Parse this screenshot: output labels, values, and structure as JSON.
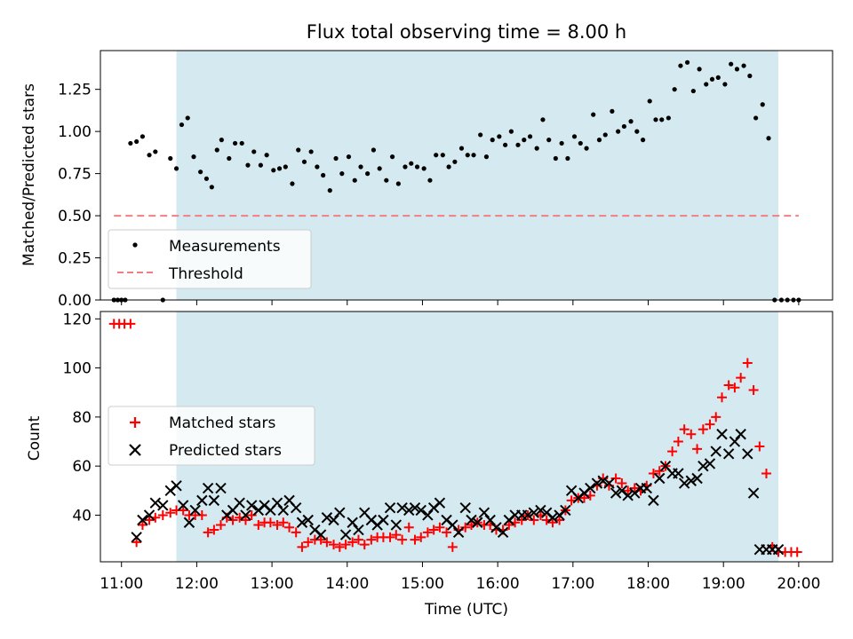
{
  "chart_data": [
    {
      "type": "scatter",
      "title": "Flux total observing time = 8.00 h",
      "xlabel": "",
      "ylabel": "Matched/Predicted stars",
      "xlim": [
        10.72,
        20.45
      ],
      "ylim": [
        0,
        1.48
      ],
      "yticks": [
        "0.00",
        "0.25",
        "0.50",
        "0.75",
        "1.00",
        "1.25"
      ],
      "shaded_region": [
        11.73,
        19.73
      ],
      "shaded_color": "#d4eaf0",
      "legend_placement": "lower-left",
      "series": [
        {
          "name": "Measurements",
          "marker": "dot",
          "color": "#000000",
          "x": [
            10.9,
            10.95,
            11.0,
            11.05,
            11.12,
            11.2,
            11.28,
            11.37,
            11.45,
            11.55,
            11.65,
            11.73,
            11.8,
            11.88,
            11.96,
            12.05,
            12.13,
            12.2,
            12.27,
            12.33,
            12.43,
            12.51,
            12.6,
            12.68,
            12.76,
            12.85,
            12.93,
            13.02,
            13.1,
            13.18,
            13.27,
            13.35,
            13.43,
            13.52,
            13.6,
            13.68,
            13.77,
            13.85,
            13.93,
            14.02,
            14.1,
            14.18,
            14.27,
            14.35,
            14.43,
            14.52,
            14.6,
            14.68,
            14.77,
            14.85,
            14.93,
            15.02,
            15.1,
            15.18,
            15.27,
            15.35,
            15.43,
            15.52,
            15.6,
            15.68,
            15.77,
            15.85,
            15.93,
            16.02,
            16.1,
            16.18,
            16.27,
            16.35,
            16.43,
            16.52,
            16.6,
            16.68,
            16.77,
            16.85,
            16.93,
            17.02,
            17.1,
            17.18,
            17.27,
            17.35,
            17.43,
            17.52,
            17.6,
            17.68,
            17.77,
            17.85,
            17.93,
            18.02,
            18.1,
            18.18,
            18.27,
            18.35,
            18.43,
            18.52,
            18.6,
            18.68,
            18.77,
            18.85,
            18.93,
            19.02,
            19.1,
            19.18,
            19.27,
            19.35,
            19.43,
            19.52,
            19.6,
            19.68,
            19.77,
            19.85,
            19.93,
            20.0
          ],
          "y": [
            0.0,
            0.0,
            0.0,
            0.0,
            0.93,
            0.94,
            0.97,
            0.86,
            0.88,
            0.0,
            0.84,
            0.78,
            1.04,
            1.08,
            0.85,
            0.76,
            0.72,
            0.67,
            0.89,
            0.95,
            0.84,
            0.93,
            0.93,
            0.8,
            0.88,
            0.8,
            0.86,
            0.77,
            0.78,
            0.79,
            0.69,
            0.89,
            0.82,
            0.88,
            0.79,
            0.74,
            0.65,
            0.84,
            0.75,
            0.85,
            0.71,
            0.79,
            0.75,
            0.89,
            0.78,
            0.71,
            0.85,
            0.69,
            0.79,
            0.81,
            0.79,
            0.78,
            0.71,
            0.86,
            0.86,
            0.79,
            0.82,
            0.9,
            0.86,
            0.86,
            0.98,
            0.85,
            0.95,
            0.97,
            0.92,
            1.0,
            0.92,
            0.95,
            0.97,
            0.9,
            1.07,
            0.95,
            0.84,
            0.93,
            0.84,
            0.97,
            0.93,
            0.9,
            1.1,
            0.95,
            0.98,
            1.12,
            1.0,
            1.03,
            1.06,
            1.0,
            0.95,
            1.18,
            1.07,
            1.07,
            1.08,
            1.25,
            1.39,
            1.41,
            1.24,
            1.37,
            1.28,
            1.31,
            1.32,
            1.28,
            1.4,
            1.37,
            1.39,
            1.33,
            1.08,
            1.16,
            0.96,
            0.0,
            0.0,
            0.0,
            0.0,
            0.0
          ]
        },
        {
          "name": "Threshold",
          "marker": "dashed-line",
          "color": "#f08080",
          "x": [
            10.9,
            20.0
          ],
          "y": [
            0.5,
            0.5
          ]
        }
      ]
    },
    {
      "type": "scatter",
      "title": "",
      "xlabel": "Time (UTC)",
      "ylabel": "Count",
      "xlim": [
        10.72,
        20.45
      ],
      "ylim": [
        21,
        123
      ],
      "xticks": [
        "11:00",
        "12:00",
        "13:00",
        "14:00",
        "15:00",
        "16:00",
        "17:00",
        "18:00",
        "19:00",
        "20:00"
      ],
      "yticks": [
        "40",
        "60",
        "80",
        "100",
        "120"
      ],
      "shaded_region": [
        11.73,
        19.73
      ],
      "shaded_color": "#d4eaf0",
      "legend_placement": "center-left",
      "series": [
        {
          "name": "Matched stars",
          "marker": "plus",
          "color": "#ff0000",
          "x": [
            10.9,
            10.97,
            11.04,
            11.12,
            11.2,
            11.28,
            11.37,
            11.45,
            11.55,
            11.65,
            11.73,
            11.82,
            11.9,
            11.98,
            12.07,
            12.15,
            12.23,
            12.32,
            12.4,
            12.48,
            12.57,
            12.65,
            12.73,
            12.82,
            12.9,
            12.98,
            13.07,
            13.15,
            13.23,
            13.32,
            13.4,
            13.48,
            13.57,
            13.65,
            13.73,
            13.82,
            13.9,
            13.98,
            14.07,
            14.15,
            14.23,
            14.32,
            14.4,
            14.48,
            14.57,
            14.65,
            14.73,
            14.82,
            14.9,
            14.98,
            15.07,
            15.15,
            15.23,
            15.32,
            15.4,
            15.48,
            15.57,
            15.65,
            15.73,
            15.82,
            15.9,
            15.98,
            16.07,
            16.15,
            16.23,
            16.32,
            16.4,
            16.48,
            16.57,
            16.65,
            16.73,
            16.82,
            16.9,
            16.98,
            17.07,
            17.15,
            17.23,
            17.32,
            17.4,
            17.48,
            17.57,
            17.65,
            17.73,
            17.82,
            17.9,
            17.98,
            18.07,
            18.15,
            18.23,
            18.32,
            18.4,
            18.48,
            18.57,
            18.65,
            18.73,
            18.82,
            18.9,
            18.98,
            19.07,
            19.15,
            19.23,
            19.32,
            19.4,
            19.48,
            19.57,
            19.65,
            19.73,
            19.82,
            19.9,
            19.98
          ],
          "y": [
            118,
            118,
            118,
            118,
            29,
            36,
            38,
            39,
            40,
            41,
            42,
            42,
            40,
            40,
            40,
            33,
            34,
            36,
            39,
            38,
            39,
            38,
            40,
            36,
            37,
            37,
            36,
            37,
            35,
            33,
            27,
            29,
            30,
            30,
            29,
            28,
            27,
            28,
            29,
            30,
            28,
            30,
            31,
            31,
            31,
            32,
            30,
            35,
            30,
            31,
            33,
            34,
            35,
            33,
            27,
            34,
            35,
            36,
            37,
            36,
            36,
            34,
            34,
            36,
            37,
            38,
            40,
            38,
            40,
            38,
            37,
            38,
            42,
            46,
            47,
            47,
            48,
            52,
            55,
            52,
            55,
            53,
            50,
            51,
            50,
            52,
            57,
            58,
            60,
            66,
            70,
            75,
            73,
            67,
            75,
            77,
            80,
            88,
            93,
            92,
            96,
            102,
            91,
            68,
            57,
            27,
            25,
            25,
            25,
            25
          ],
          "note": ""
        },
        {
          "name": "Predicted stars",
          "marker": "x",
          "color": "#000000",
          "x": [
            11.2,
            11.28,
            11.37,
            11.45,
            11.55,
            11.65,
            11.73,
            11.82,
            11.9,
            11.98,
            12.07,
            12.15,
            12.23,
            12.32,
            12.4,
            12.48,
            12.57,
            12.65,
            12.73,
            12.82,
            12.9,
            12.98,
            13.07,
            13.15,
            13.23,
            13.32,
            13.4,
            13.48,
            13.57,
            13.65,
            13.73,
            13.82,
            13.9,
            13.98,
            14.07,
            14.15,
            14.23,
            14.32,
            14.4,
            14.48,
            14.57,
            14.65,
            14.73,
            14.82,
            14.9,
            14.98,
            15.07,
            15.15,
            15.23,
            15.32,
            15.4,
            15.48,
            15.57,
            15.65,
            15.73,
            15.82,
            15.9,
            15.98,
            16.07,
            16.15,
            16.23,
            16.32,
            16.4,
            16.48,
            16.57,
            16.65,
            16.73,
            16.82,
            16.9,
            16.98,
            17.07,
            17.15,
            17.23,
            17.32,
            17.4,
            17.48,
            17.57,
            17.65,
            17.73,
            17.82,
            17.9,
            17.98,
            18.07,
            18.15,
            18.23,
            18.32,
            18.4,
            18.48,
            18.57,
            18.65,
            18.73,
            18.82,
            18.9,
            18.98,
            19.07,
            19.15,
            19.23,
            19.32,
            19.4,
            19.48,
            19.57,
            19.65,
            19.73
          ],
          "y": [
            31,
            38,
            40,
            45,
            44,
            50,
            52,
            44,
            37,
            42,
            46,
            51,
            46,
            51,
            40,
            42,
            45,
            40,
            44,
            42,
            44,
            42,
            45,
            42,
            46,
            43,
            37,
            38,
            34,
            32,
            39,
            38,
            41,
            32,
            37,
            34,
            41,
            38,
            36,
            38,
            43,
            36,
            43,
            42,
            43,
            42,
            40,
            43,
            45,
            38,
            36,
            33,
            43,
            38,
            37,
            41,
            38,
            35,
            33,
            38,
            40,
            40,
            40,
            41,
            42,
            41,
            39,
            40,
            42,
            50,
            47,
            49,
            51,
            53,
            54,
            53,
            49,
            50,
            48,
            49,
            51,
            51,
            46,
            55,
            60,
            57,
            57,
            53,
            54,
            55,
            60,
            61,
            66,
            73,
            65,
            70,
            73,
            65,
            49,
            26,
            26,
            26,
            26
          ]
        }
      ]
    }
  ]
}
